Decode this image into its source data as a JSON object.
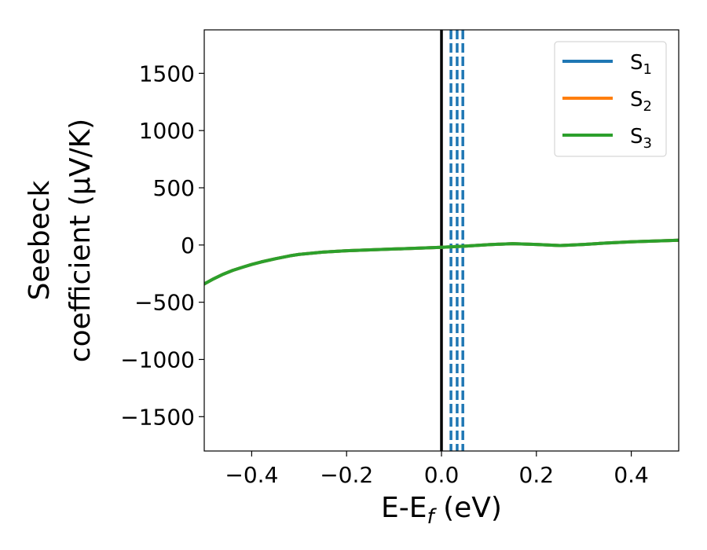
{
  "chart_data": {
    "type": "line",
    "title": "",
    "xlabel": "E-E_f (eV)",
    "xlabel_parts": {
      "base": "E-E",
      "sub": "f",
      "unit": " (eV)"
    },
    "ylabel_lines": [
      "Seebeck",
      "coefficient  (μV/K)"
    ],
    "xlim": [
      -0.5,
      0.5
    ],
    "ylim": [
      -1800,
      1880
    ],
    "xticks": [
      -0.4,
      -0.2,
      0.0,
      0.2,
      0.4
    ],
    "xtick_labels": [
      "−0.4",
      "−0.2",
      "0.0",
      "0.2",
      "0.4"
    ],
    "yticks": [
      -1500,
      -1000,
      -500,
      0,
      500,
      1000,
      1500
    ],
    "ytick_labels": [
      "−1500",
      "−1000",
      "−500",
      "0",
      "500",
      "1000",
      "1500"
    ],
    "grid": false,
    "legend": {
      "placement": "top-right",
      "entries": [
        {
          "name": "S1",
          "base": "S",
          "sub": "1",
          "color": "#1f77b4"
        },
        {
          "name": "S2",
          "base": "S",
          "sub": "2",
          "color": "#ff7f0e"
        },
        {
          "name": "S3",
          "base": "S",
          "sub": "3",
          "color": "#2ca02c"
        }
      ]
    },
    "x": [
      -0.5,
      -0.48,
      -0.46,
      -0.44,
      -0.42,
      -0.4,
      -0.38,
      -0.35,
      -0.32,
      -0.3,
      -0.25,
      -0.2,
      -0.15,
      -0.1,
      -0.05,
      0.0,
      0.05,
      0.1,
      0.15,
      0.2,
      0.25,
      0.3,
      0.35,
      0.4,
      0.45,
      0.5
    ],
    "series": [
      {
        "name": "S1",
        "color": "#1f77b4",
        "values": [
          -340,
          -295,
          -255,
          -222,
          -195,
          -170,
          -148,
          -120,
          -95,
          -82,
          -62,
          -50,
          -42,
          -35,
          -28,
          -20,
          -10,
          3,
          12,
          5,
          -5,
          5,
          18,
          28,
          35,
          42
        ]
      },
      {
        "name": "S2",
        "color": "#ff7f0e",
        "values": [
          -340,
          -295,
          -255,
          -222,
          -195,
          -170,
          -148,
          -120,
          -95,
          -82,
          -62,
          -50,
          -42,
          -35,
          -28,
          -20,
          -10,
          3,
          12,
          5,
          -5,
          5,
          18,
          28,
          35,
          42
        ]
      },
      {
        "name": "S3",
        "color": "#2ca02c",
        "values": [
          -340,
          -295,
          -255,
          -222,
          -195,
          -170,
          -148,
          -120,
          -95,
          -82,
          -62,
          -50,
          -42,
          -35,
          -28,
          -20,
          -10,
          3,
          12,
          5,
          -5,
          5,
          18,
          28,
          35,
          42
        ]
      }
    ],
    "vertical_lines": [
      {
        "x": 0.0,
        "style": "solid",
        "color": "#000000"
      },
      {
        "x": 0.02,
        "style": "dashed",
        "color": "#1f77b4"
      },
      {
        "x": 0.033,
        "style": "dashed",
        "color": "#1f77b4"
      },
      {
        "x": 0.045,
        "style": "dashed",
        "color": "#1f77b4"
      }
    ]
  }
}
